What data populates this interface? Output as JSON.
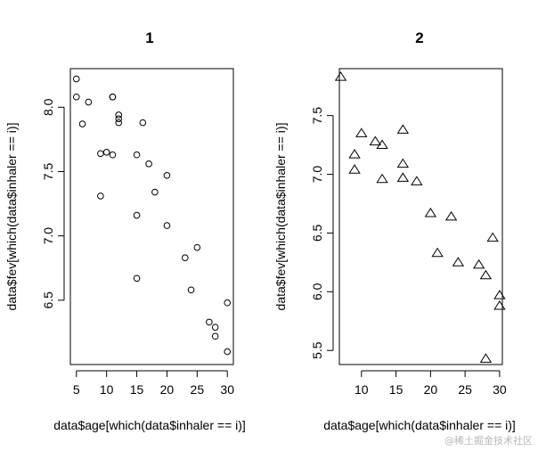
{
  "chart_data": [
    {
      "type": "scatter",
      "title": "1",
      "xlabel": "data$age[which(data$inhaler == i)]",
      "ylabel": "data$fev[which(data$inhaler == i)]",
      "xlim": [
        4.0,
        31.0
      ],
      "ylim": [
        6.0,
        8.3
      ],
      "xticks": [
        5,
        10,
        15,
        20,
        25,
        30
      ],
      "yticks": [
        6.5,
        7.0,
        7.5,
        8.0
      ],
      "marker": "circle",
      "grid": false,
      "series": [
        {
          "points": [
            [
              5,
              8.22
            ],
            [
              5,
              8.08
            ],
            [
              6,
              7.87
            ],
            [
              7,
              8.04
            ],
            [
              9,
              7.64
            ],
            [
              9,
              7.31
            ],
            [
              10,
              7.65
            ],
            [
              11,
              8.08
            ],
            [
              11,
              8.08
            ],
            [
              11,
              7.63
            ],
            [
              12,
              7.94
            ],
            [
              12,
              7.91
            ],
            [
              12,
              7.88
            ],
            [
              15,
              7.63
            ],
            [
              15,
              7.16
            ],
            [
              15,
              6.67
            ],
            [
              16,
              7.88
            ],
            [
              17,
              7.56
            ],
            [
              18,
              7.34
            ],
            [
              20,
              7.47
            ],
            [
              20,
              7.08
            ],
            [
              23,
              6.83
            ],
            [
              24,
              6.58
            ],
            [
              25,
              6.91
            ],
            [
              27,
              6.33
            ],
            [
              28,
              6.29
            ],
            [
              28,
              6.22
            ],
            [
              30,
              6.48
            ],
            [
              30,
              6.1
            ]
          ]
        }
      ]
    },
    {
      "type": "scatter",
      "title": "2",
      "xlabel": "data$age[which(data$inhaler == i)]",
      "ylabel": "data$fev[which(data$inhaler == i)]",
      "xlim": [
        6.8,
        30.4
      ],
      "ylim": [
        5.38,
        7.9
      ],
      "xticks": [
        10,
        15,
        20,
        25,
        30
      ],
      "yticks": [
        5.5,
        6.0,
        6.5,
        7.0,
        7.5
      ],
      "marker": "triangle",
      "grid": false,
      "series": [
        {
          "points": [
            [
              7,
              7.83
            ],
            [
              9,
              7.17
            ],
            [
              9,
              7.04
            ],
            [
              10,
              7.35
            ],
            [
              12,
              7.28
            ],
            [
              13,
              7.25
            ],
            [
              13,
              6.96
            ],
            [
              16,
              7.38
            ],
            [
              16,
              7.09
            ],
            [
              16,
              6.97
            ],
            [
              18,
              6.94
            ],
            [
              20,
              6.67
            ],
            [
              21,
              6.33
            ],
            [
              23,
              6.64
            ],
            [
              24,
              6.25
            ],
            [
              27,
              6.23
            ],
            [
              28,
              6.14
            ],
            [
              28,
              5.43
            ],
            [
              29,
              6.46
            ],
            [
              30,
              5.97
            ],
            [
              30,
              5.88
            ]
          ]
        }
      ]
    }
  ],
  "watermark": "@稀土掘金技术社区"
}
